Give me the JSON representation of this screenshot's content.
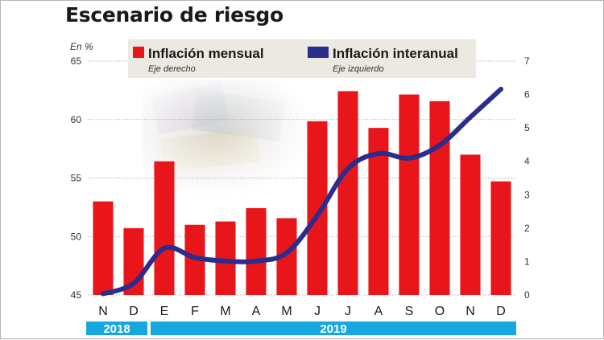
{
  "chart_data": {
    "type": "bar",
    "title": "Escenario de riesgo",
    "unit_label": "En %",
    "categories": [
      "N",
      "D",
      "E",
      "F",
      "M",
      "A",
      "M",
      "J",
      "J",
      "A",
      "S",
      "O",
      "N",
      "D"
    ],
    "years": [
      {
        "label": "2018",
        "span": 2
      },
      {
        "label": "2019",
        "span": 12
      }
    ],
    "left_axis": {
      "ylim": [
        45,
        65
      ],
      "ticks": [
        "45",
        "50",
        "55",
        "60",
        "65"
      ]
    },
    "right_axis": {
      "ylim": [
        0,
        7
      ],
      "ticks": [
        "0",
        "1",
        "2",
        "3",
        "4",
        "5",
        "6",
        "7"
      ]
    },
    "series": [
      {
        "name": "Inflación mensual",
        "note": "Eje derecho",
        "type": "bar",
        "axis": "right",
        "color": "#e8151b",
        "values": [
          2.8,
          2.0,
          4.0,
          2.1,
          2.2,
          2.6,
          2.3,
          5.2,
          6.1,
          5.0,
          6.0,
          5.8,
          4.2,
          3.4
        ]
      },
      {
        "name": "Inflación interanual",
        "note": "Eje izquierdo",
        "type": "line",
        "axis": "left",
        "color": "#2b2d8c",
        "values": [
          45.1,
          46.0,
          49.0,
          48.2,
          47.9,
          47.9,
          48.6,
          51.8,
          55.8,
          57.1,
          56.7,
          57.8,
          60.2,
          62.6
        ]
      }
    ],
    "grid": true,
    "legend_position": "top"
  }
}
